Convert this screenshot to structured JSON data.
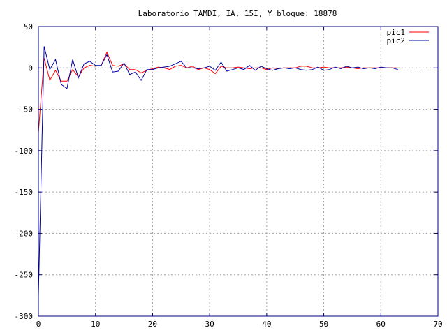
{
  "chart_data": {
    "type": "line",
    "title": "Laboratorio TAMDI, IA, 15I, Y bloque: 18878",
    "xlabel": "",
    "ylabel": "",
    "xlim": [
      0,
      70
    ],
    "ylim": [
      -300,
      50
    ],
    "x_ticks": [
      0,
      10,
      20,
      30,
      40,
      50,
      60,
      70
    ],
    "y_ticks": [
      -300,
      -250,
      -200,
      -150,
      -100,
      -50,
      0,
      50
    ],
    "grid": true,
    "legend_position": "top-right",
    "series": [
      {
        "name": "pic1",
        "color": "#ff0000",
        "x": [
          0,
          1,
          2,
          3,
          4,
          5,
          6,
          7,
          8,
          9,
          10,
          11,
          12,
          13,
          14,
          15,
          16,
          17,
          18,
          19,
          20,
          21,
          22,
          23,
          24,
          25,
          26,
          27,
          28,
          29,
          30,
          31,
          32,
          33,
          34,
          35,
          36,
          37,
          38,
          39,
          40,
          41,
          42,
          43,
          44,
          45,
          46,
          47,
          48,
          49,
          50,
          51,
          52,
          53,
          54,
          55,
          56,
          57,
          58,
          59,
          60,
          61,
          62,
          63
        ],
        "values": [
          -78,
          12,
          -15,
          -3,
          -16,
          -16,
          -2,
          -11,
          0,
          3,
          2,
          3,
          19,
          3,
          2,
          5,
          -2,
          -2,
          -6,
          -3,
          -1,
          1,
          0,
          -2,
          2,
          3,
          0,
          2,
          -2,
          0,
          -2,
          -7,
          2,
          0,
          0,
          1,
          0,
          -1,
          0,
          0,
          -2,
          0,
          -1,
          0,
          0,
          0,
          2,
          2,
          0,
          0,
          1,
          0,
          0,
          0,
          1,
          0,
          -1,
          0,
          0,
          0,
          0,
          0,
          0,
          0
        ]
      },
      {
        "name": "pic2",
        "color": "#0000a0",
        "x": [
          0,
          1,
          2,
          3,
          4,
          5,
          6,
          7,
          8,
          9,
          10,
          11,
          12,
          13,
          14,
          15,
          16,
          17,
          18,
          19,
          20,
          21,
          22,
          23,
          24,
          25,
          26,
          27,
          28,
          29,
          30,
          31,
          32,
          33,
          34,
          35,
          36,
          37,
          38,
          39,
          40,
          41,
          42,
          43,
          44,
          45,
          46,
          47,
          48,
          49,
          50,
          51,
          52,
          53,
          54,
          55,
          56,
          57,
          58,
          59,
          60,
          61,
          62,
          63
        ],
        "values": [
          -275,
          26,
          -2,
          10,
          -20,
          -25,
          10,
          -12,
          5,
          8,
          3,
          3,
          16,
          -5,
          -4,
          6,
          -8,
          -5,
          -15,
          -2,
          -2,
          0,
          1,
          2,
          5,
          8,
          0,
          0,
          -1,
          0,
          2,
          -3,
          7,
          -4,
          -2,
          0,
          -2,
          3,
          -3,
          2,
          -1,
          -3,
          -1,
          0,
          -1,
          0,
          -2,
          -3,
          -2,
          1,
          -3,
          -2,
          1,
          -1,
          2,
          0,
          1,
          -1,
          0,
          -1,
          1,
          0,
          0,
          -2
        ]
      }
    ]
  }
}
